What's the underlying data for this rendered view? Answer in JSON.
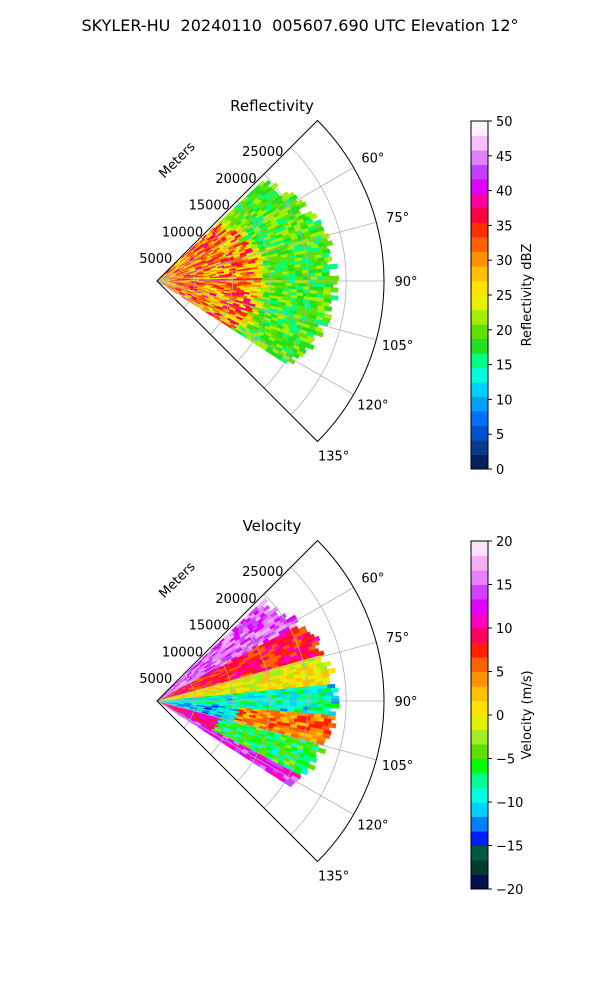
{
  "title": "SKYLER-HU  20240110  005607.690 UTC Elevation 12°",
  "chart_data": [
    {
      "type": "polar-sector",
      "title": "Reflectivity",
      "radial_label": "Meters",
      "radial_ticks": [
        "5000",
        "10000",
        "15000",
        "20000",
        "25000"
      ],
      "angle_ticks": [
        "60°",
        "75°",
        "90°",
        "105°",
        "120°",
        "135°"
      ],
      "azimuth_range_deg": [
        45,
        135
      ],
      "range_max_m": 30000,
      "grid": true,
      "colorbar": {
        "label": "Reflectivity dBZ",
        "range": [
          0,
          50
        ],
        "ticks": [
          "0",
          "5",
          "10",
          "15",
          "20",
          "25",
          "30",
          "35",
          "40",
          "45",
          "50"
        ]
      }
    },
    {
      "type": "polar-sector",
      "title": "Velocity",
      "radial_label": "Meters",
      "radial_ticks": [
        "5000",
        "10000",
        "15000",
        "20000",
        "25000"
      ],
      "angle_ticks": [
        "60°",
        "75°",
        "90°",
        "105°",
        "120°",
        "135°"
      ],
      "azimuth_range_deg": [
        45,
        135
      ],
      "range_max_m": 30000,
      "grid": true,
      "colorbar": {
        "label": "Velocity (m/s)",
        "range": [
          -20,
          20
        ],
        "ticks": [
          "−20",
          "−15",
          "−10",
          "−5",
          "0",
          "5",
          "10",
          "15",
          "20"
        ]
      }
    }
  ],
  "colors": {
    "refl_scale": [
      "#02205a",
      "#0a3a8a",
      "#0050d0",
      "#0070ff",
      "#00a0ff",
      "#00d0ff",
      "#00ffd8",
      "#00ff80",
      "#20e020",
      "#60e000",
      "#a0f000",
      "#e8f000",
      "#ffe000",
      "#ffc000",
      "#ff9000",
      "#ff6000",
      "#ff3000",
      "#ff0040",
      "#ff00a0",
      "#e000ff",
      "#c040ff",
      "#e080ff",
      "#f8c0ff",
      "#fff0ff"
    ],
    "vel_scale": [
      "#001050",
      "#003a30",
      "#005a40",
      "#0020ff",
      "#0080ff",
      "#00d0ff",
      "#00ffe0",
      "#00ff90",
      "#00ff00",
      "#60e000",
      "#a0f020",
      "#e0f000",
      "#ffe000",
      "#ffc000",
      "#ff9000",
      "#ff6000",
      "#ff2000",
      "#ff0060",
      "#ff00c0",
      "#e000ff",
      "#d040ff",
      "#e880ff",
      "#f4b0f4",
      "#fce0fc"
    ]
  }
}
